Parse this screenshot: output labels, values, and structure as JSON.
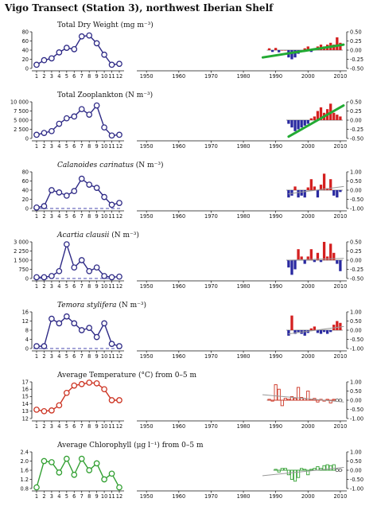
{
  "title": "Vigo Transect (Station 3), northwest Iberian Shelf",
  "month_ticks": [
    "1",
    "2",
    "3",
    "4",
    "5",
    "6",
    "7",
    "8",
    "9",
    "10",
    "11",
    "12"
  ],
  "year_ticks": [
    "1950",
    "1960",
    "1970",
    "1980",
    "1990",
    "2000",
    "2010"
  ],
  "colors": {
    "positive_bar": "#d42020",
    "negative_bar": "#2929a0",
    "trend_green": "#22aa33",
    "trend_gray": "#999999",
    "dashed_zero": "#4b4bb0"
  },
  "chart_data": [
    {
      "type": "line",
      "title": "Total Dry Weight (mg m⁻³)",
      "color": "#2e2a86",
      "x": [
        1,
        2,
        3,
        4,
        5,
        6,
        7,
        8,
        9,
        10,
        11,
        12
      ],
      "values": [
        8,
        18,
        22,
        35,
        45,
        42,
        70,
        72,
        55,
        30,
        8,
        10
      ],
      "ylim": [
        0,
        80
      ],
      "yticks": [
        "0",
        "20",
        "40",
        "60",
        "80"
      ],
      "zero_dashed": false,
      "anomaly": {
        "type": "bar",
        "years": [
          1988,
          1989,
          1990,
          1991,
          1992,
          1993,
          1994,
          1995,
          1996,
          1997,
          1998,
          1999,
          2000,
          2001,
          2002,
          2003,
          2004,
          2005,
          2006,
          2007,
          2008,
          2009,
          2010
        ],
        "values": [
          0.05,
          -0.05,
          0.06,
          -0.06,
          0,
          0,
          -0.2,
          -0.25,
          -0.2,
          -0.1,
          -0.05,
          0.05,
          0.1,
          -0.05,
          0.05,
          0.1,
          0.15,
          0.1,
          0.15,
          0.2,
          0.15,
          0.35,
          0.2
        ],
        "ylim": [
          -0.5,
          0.5
        ],
        "yticks": [
          "0.50",
          "0.25",
          "0.00",
          "-0.25",
          "-0.50"
        ],
        "trend": {
          "x": [
            1986,
            2011
          ],
          "y": [
            -0.2,
            0.15
          ],
          "color": "#22aa33"
        }
      }
    },
    {
      "type": "line",
      "title": "Total Zooplankton (N m⁻³)",
      "color": "#2e2a86",
      "x": [
        1,
        2,
        3,
        4,
        5,
        6,
        7,
        8,
        9,
        10,
        11,
        12
      ],
      "values": [
        1000,
        1500,
        2000,
        4000,
        5500,
        6000,
        8000,
        6500,
        9000,
        3000,
        800,
        1000
      ],
      "ylim": [
        0,
        10000
      ],
      "yticks": [
        "10 000",
        "7 500",
        "5 000",
        "2 500",
        "0"
      ],
      "zero_dashed": false,
      "anomaly": {
        "type": "bar",
        "years": [
          1994,
          1995,
          1996,
          1997,
          1998,
          1999,
          2000,
          2001,
          2002,
          2003,
          2004,
          2005,
          2006,
          2007,
          2008,
          2009,
          2010
        ],
        "values": [
          -0.1,
          -0.2,
          -0.3,
          -0.25,
          -0.2,
          -0.15,
          -0.1,
          0.05,
          0.1,
          0.25,
          0.35,
          0.2,
          0.3,
          0.45,
          0.2,
          0.15,
          0.1
        ],
        "ylim": [
          -0.5,
          0.5
        ],
        "yticks": [
          "0.50",
          "0.25",
          "0.00",
          "-0.25",
          "-0.50"
        ],
        "trend": {
          "x": [
            1994,
            2011
          ],
          "y": [
            -0.45,
            0.4
          ],
          "color": "#22aa33"
        }
      }
    },
    {
      "type": "line",
      "title": "Calanoides carinatus (N m⁻³)",
      "title_italic": "Calanoides carinatus",
      "title_rest": " (N m⁻³)",
      "color": "#2e2a86",
      "x": [
        1,
        2,
        3,
        4,
        5,
        6,
        7,
        8,
        9,
        10,
        11,
        12
      ],
      "values": [
        2,
        5,
        40,
        35,
        28,
        38,
        65,
        52,
        45,
        25,
        8,
        12
      ],
      "ylim": [
        0,
        80
      ],
      "yticks": [
        "80",
        "60",
        "40",
        "20",
        "0"
      ],
      "zero_dashed": true,
      "anomaly": {
        "type": "bar",
        "years": [
          1994,
          1995,
          1996,
          1997,
          1998,
          1999,
          2000,
          2001,
          2002,
          2003,
          2004,
          2005,
          2006,
          2007,
          2008,
          2009,
          2010
        ],
        "values": [
          -0.4,
          -0.3,
          0.2,
          -0.4,
          -0.3,
          -0.4,
          0.15,
          0.6,
          0.2,
          -0.4,
          0.3,
          0.9,
          0.1,
          0.6,
          -0.3,
          -0.4,
          -0.1
        ],
        "ylim": [
          -1,
          1
        ],
        "yticks": [
          "1.00",
          "0.50",
          "0.00",
          "-0.50",
          "-1.00"
        ],
        "trend": {
          "x": [
            1994,
            2011
          ],
          "y": [
            -0.2,
            0.2
          ],
          "color": "#999999"
        }
      }
    },
    {
      "type": "line",
      "title": "Acartia clausii (N m⁻³)",
      "title_italic": "Acartia clausii",
      "title_rest": " (N m⁻³)",
      "color": "#2e2a86",
      "x": [
        1,
        2,
        3,
        4,
        5,
        6,
        7,
        8,
        9,
        10,
        11,
        12
      ],
      "values": [
        100,
        100,
        200,
        600,
        2800,
        900,
        1500,
        600,
        900,
        200,
        100,
        150
      ],
      "ylim": [
        0,
        3000
      ],
      "yticks": [
        "3 000",
        "2 250",
        "1 500",
        "750",
        "0"
      ],
      "zero_dashed": true,
      "anomaly": {
        "type": "bar",
        "years": [
          1994,
          1995,
          1996,
          1997,
          1998,
          1999,
          2000,
          2001,
          2002,
          2003,
          2004,
          2005,
          2006,
          2007,
          2008,
          2009,
          2010
        ],
        "values": [
          -0.2,
          -0.4,
          -0.25,
          0.3,
          0.1,
          -0.1,
          0.1,
          0.3,
          -0.05,
          0.2,
          -0.05,
          0.5,
          0.1,
          0.45,
          0.2,
          -0.1,
          -0.3
        ],
        "ylim": [
          -0.5,
          0.5
        ],
        "yticks": [
          "0.50",
          "0.25",
          "0.00",
          "-0.25",
          "-0.50"
        ],
        "trend": {
          "x": [
            1994,
            2011
          ],
          "y": [
            0,
            0.05
          ],
          "color": "#999999"
        }
      }
    },
    {
      "type": "line",
      "title": "Temora stylifera (N m⁻³)",
      "title_italic": "Temora stylifera",
      "title_rest": " (N m⁻³)",
      "color": "#2e2a86",
      "x": [
        1,
        2,
        3,
        4,
        5,
        6,
        7,
        8,
        9,
        10,
        11,
        12
      ],
      "values": [
        1,
        1,
        13,
        11,
        14,
        11,
        8,
        9,
        5,
        11,
        2,
        1
      ],
      "ylim": [
        0,
        16
      ],
      "yticks": [
        "16",
        "12",
        "8",
        "4",
        "0"
      ],
      "zero_dashed": true,
      "anomaly": {
        "type": "bar",
        "years": [
          1994,
          1995,
          1996,
          1997,
          1998,
          1999,
          2000,
          2001,
          2002,
          2003,
          2004,
          2005,
          2006,
          2007,
          2008,
          2009,
          2010
        ],
        "values": [
          -0.3,
          0.8,
          -0.2,
          -0.1,
          -0.2,
          -0.3,
          -0.15,
          0.1,
          0.2,
          -0.15,
          -0.2,
          -0.1,
          -0.2,
          -0.1,
          0.3,
          0.5,
          0.4
        ],
        "ylim": [
          -1,
          1
        ],
        "yticks": [
          "1.00",
          "0.50",
          "0.00",
          "-0.50",
          "-1.00"
        ],
        "trend": {
          "x": [
            1994,
            2011
          ],
          "y": [
            -0.2,
            0.2
          ],
          "color": "#999999"
        }
      }
    },
    {
      "type": "line",
      "title": "Average Temperature (°C) from 0–5 m",
      "color": "#cc3322",
      "x": [
        1,
        2,
        3,
        4,
        5,
        6,
        7,
        8,
        9,
        10,
        11,
        12
      ],
      "values": [
        13.2,
        13.0,
        13.1,
        13.8,
        15.5,
        16.5,
        16.7,
        16.9,
        16.8,
        16.0,
        14.5,
        14.5
      ],
      "ylim": [
        12,
        17
      ],
      "yticks": [
        "17",
        "16",
        "15",
        "14",
        "13",
        "12"
      ],
      "zero_dashed": false,
      "anomaly": {
        "type": "bar",
        "open_bars": true,
        "years": [
          1988,
          1989,
          1990,
          1991,
          1992,
          1993,
          1994,
          1995,
          1996,
          1997,
          1998,
          1999,
          2000,
          2001,
          2002,
          2003,
          2004,
          2005,
          2006,
          2007,
          2008,
          2009,
          2010
        ],
        "values": [
          0.05,
          -0.05,
          0.85,
          0.6,
          -0.3,
          0.1,
          0.05,
          0.2,
          0.1,
          0.7,
          0.15,
          0.1,
          0.5,
          0.05,
          0.1,
          -0.1,
          0.05,
          -0.05,
          0.05,
          -0.15,
          0.05,
          0,
          0
        ],
        "ylim": [
          -1,
          1
        ],
        "yticks": [
          "1.00",
          "0.50",
          "0.00",
          "-0.50",
          "-1.00"
        ],
        "trend": {
          "x": [
            1986,
            2011
          ],
          "y": [
            0.3,
            -0.1
          ],
          "color": "#999999"
        }
      }
    },
    {
      "type": "line",
      "title": "Average Chlorophyll (μg l⁻¹) from 0–5 m",
      "color": "#33a033",
      "x": [
        1,
        2,
        3,
        4,
        5,
        6,
        7,
        8,
        9,
        10,
        11,
        12
      ],
      "values": [
        0.85,
        2.0,
        1.95,
        1.5,
        2.1,
        1.4,
        2.1,
        1.6,
        1.9,
        1.2,
        1.45,
        0.85
      ],
      "ylim": [
        0.8,
        2.4
      ],
      "yticks": [
        "2.4",
        "2.0",
        "1.6",
        "1.2",
        "0.8"
      ],
      "zero_dashed": false,
      "anomaly": {
        "type": "bar",
        "open_bars": true,
        "years": [
          1990,
          1991,
          1992,
          1993,
          1994,
          1995,
          1996,
          1997,
          1998,
          1999,
          2000,
          2001,
          2002,
          2003,
          2004,
          2005,
          2006,
          2007,
          2008,
          2009,
          2010
        ],
        "values": [
          0.05,
          -0.1,
          0.1,
          0.1,
          -0.25,
          -0.5,
          -0.6,
          -0.4,
          0.1,
          0.05,
          -0.25,
          0.05,
          0.1,
          0.2,
          0.1,
          0.25,
          0.3,
          0.25,
          0.3,
          0,
          0
        ],
        "ylim": [
          -1,
          1
        ],
        "yticks": [
          "1.00",
          "0.50",
          "0.00",
          "-0.50",
          "-1.00"
        ],
        "trend": {
          "x": [
            1986,
            2011
          ],
          "y": [
            -0.3,
            0.15
          ],
          "color": "#999999"
        }
      }
    }
  ]
}
